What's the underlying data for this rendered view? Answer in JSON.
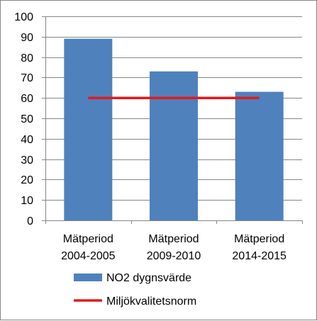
{
  "chart_data": {
    "type": "bar",
    "categories": [
      [
        "Mätperiod",
        "2004-2005"
      ],
      [
        "Mätperiod",
        "2009-2010"
      ],
      [
        "Mätperiod",
        "2014-2015"
      ]
    ],
    "series": [
      {
        "name": "NO2 dygnsvärde",
        "type": "bar",
        "values": [
          89,
          73,
          63
        ],
        "color": "#4f81bd"
      },
      {
        "name": "Miljökvalitetsnorm",
        "type": "line",
        "values": [
          60,
          60,
          60
        ],
        "color": "#e31a1c"
      }
    ],
    "yticks": [
      "0",
      "10",
      "20",
      "30",
      "40",
      "50",
      "60",
      "70",
      "80",
      "90",
      "100"
    ],
    "ylim": [
      0,
      100
    ],
    "grid": true,
    "legend_position": "bottom"
  }
}
